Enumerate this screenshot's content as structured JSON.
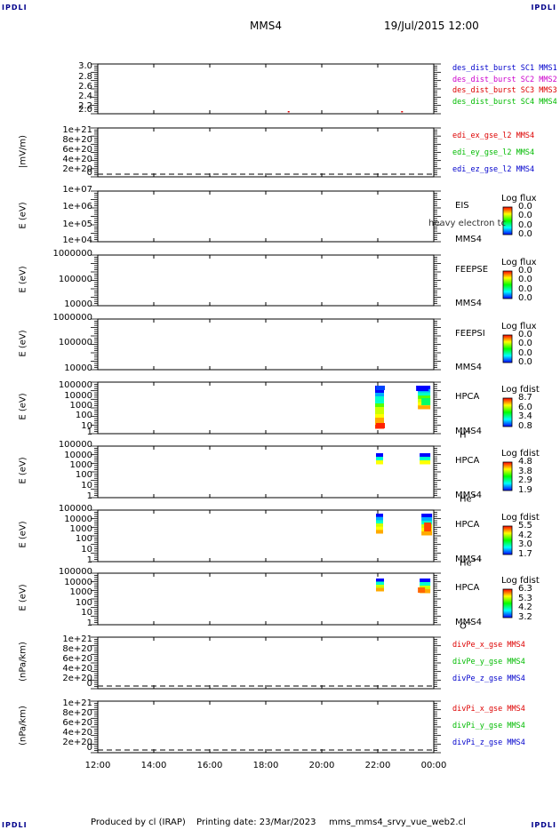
{
  "corners": {
    "tl": "IPDLI",
    "tr": "IPDLI",
    "bl": "IPDLI",
    "br": "IPDLI"
  },
  "header": {
    "title": "MMS4",
    "date": "19/Jul/2015 12:00"
  },
  "footer": {
    "produced": "Produced by cl (IRAP)",
    "printing": "Printing date: 23/Mar/2023",
    "file": "mms_mms4_srvy_vue_web2.cl"
  },
  "colors": {
    "c1": "#0000cc",
    "c2": "#cc00cc",
    "c3": "#dd0000",
    "c4": "#00bb00"
  },
  "chart_data": {
    "type": "multi-panel time series and spectrograms",
    "x_range": [
      "12:00",
      "00:00"
    ],
    "x_ticks": [
      "12:00",
      "14:00",
      "16:00",
      "18:00",
      "20:00",
      "22:00",
      "00:00"
    ],
    "panels": [
      {
        "id": "p1",
        "ylabel": "",
        "ticks": [
          "3.0",
          "2.8",
          "2.6",
          "2.4",
          "2.2",
          "2.0"
        ],
        "legend": [
          {
            "text": "des_dist_burst SC1 MMS1",
            "color": "#0000cc"
          },
          {
            "text": "des_dist_burst SC2 MMS2",
            "color": "#cc00cc"
          },
          {
            "text": "des_dist_burst SC3 MMS3",
            "color": "#dd0000"
          },
          {
            "text": "des_dist_burst SC4 MMS4",
            "color": "#00bb00"
          }
        ],
        "points": [
          {
            "x": "18:49",
            "y": 2.0,
            "color": "#dd0000"
          },
          {
            "x": "22:52",
            "y": 2.0,
            "color": "#dd0000"
          }
        ]
      },
      {
        "id": "p2",
        "ylabel": "|mV/m)",
        "ticks": [
          "1e+21",
          "8e+20",
          "6e+20",
          "4e+20",
          "2e+20",
          "0"
        ],
        "legend": [
          {
            "text": "edi_ex_gse_l2 MMS4",
            "color": "#dd0000"
          },
          {
            "text": "edi_ey_gse_l2 MMS4",
            "color": "#00bb00"
          },
          {
            "text": "edi_ez_gse_l2 MMS4",
            "color": "#0000cc"
          }
        ]
      },
      {
        "id": "p3",
        "ylabel": "E (eV)",
        "ticks": [
          "1e+07",
          "1e+06",
          "1e+05",
          "1e+04"
        ],
        "instrument": [
          "EIS",
          "MMS4"
        ],
        "overlay": "heavy electron tc",
        "cb_title": "Log flux",
        "cb_values": [
          "0.0",
          "0.0",
          "0.0",
          "0.0"
        ]
      },
      {
        "id": "p4",
        "ylabel": "E (eV)",
        "ticks": [
          "1000000",
          "100000",
          "10000"
        ],
        "instrument": [
          "FEEPSE",
          "MMS4"
        ],
        "cb_title": "Log flux",
        "cb_values": [
          "0.0",
          "0.0",
          "0.0",
          "0.0"
        ]
      },
      {
        "id": "p5",
        "ylabel": "E (eV)",
        "ticks": [
          "1000000",
          "100000",
          "10000"
        ],
        "instrument": [
          "FEEPSI",
          "MMS4"
        ],
        "cb_title": "Log flux",
        "cb_values": [
          "0.0",
          "0.0",
          "0.0",
          "0.0"
        ]
      },
      {
        "id": "p6",
        "ylabel": "E (eV)",
        "ticks": [
          "100000",
          "10000",
          "1000",
          "100",
          "10",
          "1"
        ],
        "instrument": [
          "HPCA",
          "MMS4"
        ],
        "species": "H",
        "species_sup": "+",
        "cb_title": "Log fdist",
        "cb_values": [
          "8.7",
          "6.0",
          "3.4",
          "0.8"
        ]
      },
      {
        "id": "p7",
        "ylabel": "E (eV)",
        "ticks": [
          "100000",
          "10000",
          "1000",
          "100",
          "10",
          "1"
        ],
        "instrument": [
          "HPCA",
          "MMS4"
        ],
        "species": "He",
        "species_sup": "+",
        "cb_title": "Log fdist",
        "cb_values": [
          "4.8",
          "3.8",
          "2.9",
          "1.9"
        ]
      },
      {
        "id": "p8",
        "ylabel": "E (eV)",
        "ticks": [
          "100000",
          "10000",
          "1000",
          "100",
          "10",
          "1"
        ],
        "instrument": [
          "HPCA",
          "MMS4"
        ],
        "species": "He",
        "species_sup": "++",
        "cb_title": "Log fdist",
        "cb_values": [
          "5.5",
          "4.2",
          "3.0",
          "1.7"
        ]
      },
      {
        "id": "p9",
        "ylabel": "E (eV)",
        "ticks": [
          "100000",
          "10000",
          "1000",
          "100",
          "10",
          "1"
        ],
        "instrument": [
          "HPCA",
          "MMS4"
        ],
        "species": "O",
        "species_sup": "+",
        "cb_title": "Log fdist",
        "cb_values": [
          "6.3",
          "5.3",
          "4.2",
          "3.2"
        ]
      },
      {
        "id": "p10",
        "ylabel": "(nPa/km)",
        "ticks": [
          "1e+21",
          "8e+20",
          "6e+20",
          "4e+20",
          "2e+20",
          "0"
        ],
        "legend": [
          {
            "text": "divPe_x_gse MMS4",
            "color": "#dd0000"
          },
          {
            "text": "divPe_y_gse MMS4",
            "color": "#00bb00"
          },
          {
            "text": "divPe_z_gse MMS4",
            "color": "#0000cc"
          }
        ]
      },
      {
        "id": "p11",
        "ylabel": "(nPa/km)",
        "ticks": [
          "1e+21",
          "8e+20",
          "6e+20",
          "4e+20",
          "2e+20",
          "0"
        ],
        "legend": [
          {
            "text": "divPi_x_gse MMS4",
            "color": "#dd0000"
          },
          {
            "text": "divPi_y_gse MMS4",
            "color": "#00bb00"
          },
          {
            "text": "divPi_z_gse MMS4",
            "color": "#0000cc"
          }
        ]
      }
    ]
  }
}
